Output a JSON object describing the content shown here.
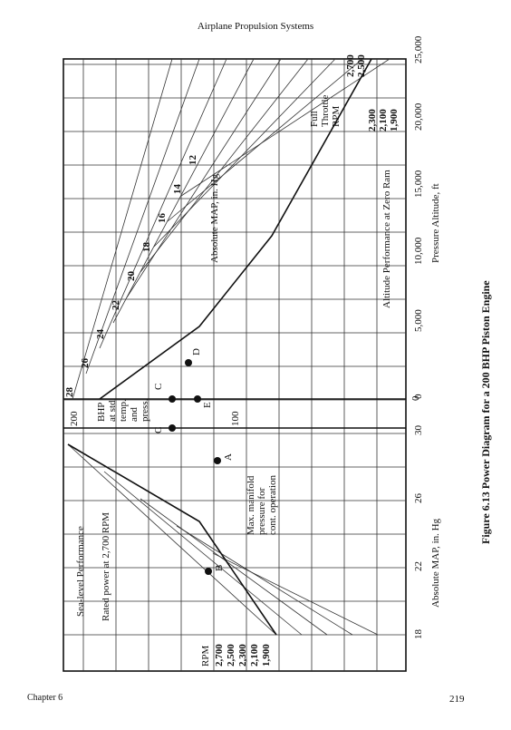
{
  "header": {
    "title": "Airplane Propulsion Systems"
  },
  "figure": {
    "sea_level": {
      "title": "Sea-level Performance",
      "rated": "Rated power at 2,700 RPM",
      "max_map": [
        "Max. manifold",
        "pressure for",
        "cont. operation"
      ],
      "rpm_label": "RPM",
      "rpm": [
        "2,700",
        "2,500",
        "2,300",
        "2,100",
        "1,900"
      ],
      "x_ticks": [
        "18",
        "22",
        "26",
        "30"
      ],
      "x_label": "Absolute MAP, in. Hg"
    },
    "bhp_axis": {
      "ticks": [
        "200",
        "100",
        "0"
      ],
      "label": [
        "BHP",
        "at std.",
        "temp.",
        "and",
        "press."
      ]
    },
    "altitude": {
      "title": "Altitude Performance at Zero Ram",
      "map_label": "Absolute MAP, in. Hg",
      "map_lines": [
        "28",
        "26",
        "24",
        "22",
        "20",
        "18",
        "16",
        "14",
        "12"
      ],
      "throttle": [
        "Full",
        "Throttle",
        "RPM"
      ],
      "rpm": [
        "2,700",
        "2,500",
        "2,300",
        "2,100",
        "1,900"
      ],
      "x_ticks": [
        "0",
        "5,000",
        "10,000",
        "15,000",
        "20,000",
        "25,000"
      ],
      "x_label": "Pressure Altitude, ft"
    },
    "points": [
      "A",
      "B",
      "C",
      "C",
      "D",
      "E"
    ]
  },
  "caption": "Figure 6.13 Power Diagram for a 200 BHP Piston Engine",
  "footer": {
    "chapter": "Chapter 6",
    "page": "219"
  }
}
